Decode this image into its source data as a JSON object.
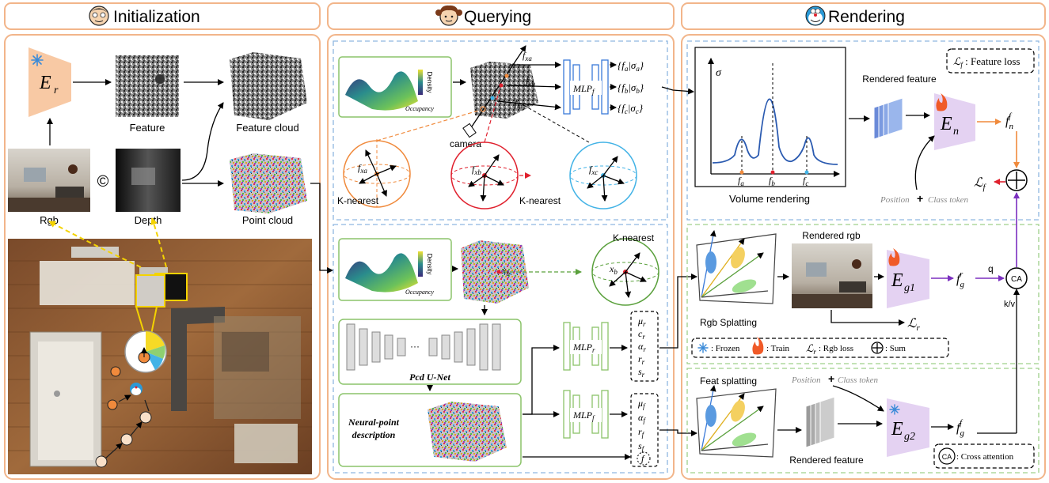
{
  "sections": {
    "initialization": "Initialization",
    "querying": "Querying",
    "rendering": "Rendering"
  },
  "init": {
    "encoder": "E",
    "encoder_sub": "r",
    "feature": "Feature",
    "feature_cloud": "Feature cloud",
    "rgb": "Rgb",
    "concat": "©",
    "depth": "Depth",
    "point_cloud": "Point cloud"
  },
  "query": {
    "density": "Density",
    "occupancy": "Occupancy",
    "camera": "camera",
    "k_nearest": "K-nearest",
    "mlp": "MLP",
    "mlp_f_sub": "f",
    "mlp_r_sub": "r",
    "outputs": [
      "{f_a|σ_a}",
      "{f_b|σ_b}",
      "{f_c|σ_c}"
    ],
    "f_xa": "f_xa",
    "f_xb": "f_xb",
    "f_xc": "f_xc",
    "x_b": "x_b",
    "pcd_unet": "Pcd U-Net",
    "neural_point_1": "Neural-point",
    "neural_point_2": "description",
    "rgb_params": [
      "μ_r",
      "c_r",
      "α_r",
      "r_r",
      "s_r"
    ],
    "feat_params": [
      "μ_f",
      "α_f",
      "r_f",
      "s_f",
      "f"
    ]
  },
  "render": {
    "sigma": "σ",
    "volume_rendering": "Volume rendering",
    "f_labels": [
      "f_a",
      "f_b",
      "f_c"
    ],
    "rendered_feature": "Rendered feature",
    "feature_loss": "L_f : Feature loss",
    "encoder_n": "E_n",
    "f_n": "f_n^f",
    "position": "Position",
    "plus": "+",
    "class_token": "Class token",
    "L_f": "L_f",
    "rendered_rgb": "Rendered rgb",
    "rgb_splatting": "Rgb Splatting",
    "encoder_g1": "E_g1",
    "f_g_r": "f_g^r",
    "q": "q",
    "kv": "k/v",
    "ca": "CA",
    "L_r": "L_r",
    "legend": {
      "frozen": ": Frozen",
      "train": ": Train",
      "rgb_loss": ": Rgb loss",
      "sum": ": Sum"
    },
    "feat_splatting": "Feat splatting",
    "rendered_feature_2": "Rendered feature",
    "encoder_g2": "E_g2",
    "f_g_f": "f_g^f",
    "cross_attention": ": Cross attention"
  },
  "colors": {
    "panel_border": "#f2b58a",
    "encoder_fill": "#f8c9a4",
    "encoder_train": "#e4d2f2",
    "blue_dash": "#8fb6e0",
    "green_dash": "#9fd08a",
    "orange": "#f08a3c",
    "red": "#e0212e",
    "cyan": "#43b3e6",
    "purple": "#7b2fbf"
  }
}
